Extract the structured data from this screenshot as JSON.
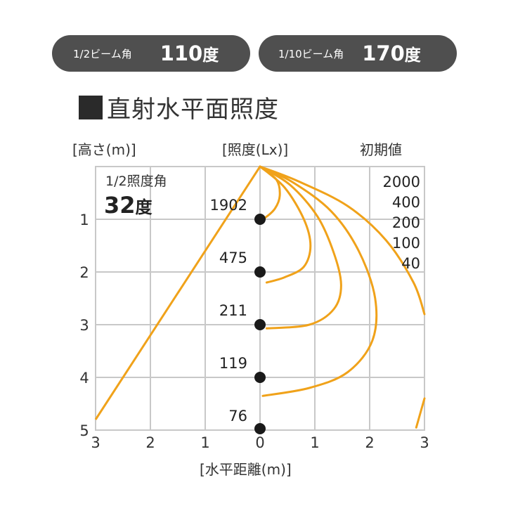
{
  "badges": [
    {
      "label": "1/2ビーム角",
      "value": "110",
      "unit": "度"
    },
    {
      "label": "1/10ビーム角",
      "value": "170",
      "unit": "度"
    }
  ],
  "title": "直射水平面照度",
  "headers": {
    "height": "[高さ(m)]",
    "illuminance": "[照度(Lx)]",
    "initial": "初期値"
  },
  "x_axis_label": "[水平距離(m)]",
  "half_angle": {
    "label": "1/2照度角",
    "value": "32",
    "unit": "度"
  },
  "colors": {
    "curve": "#f0a21a",
    "grid": "#c8c8c8",
    "dot": "#1a1a1a",
    "pill": "#4f4f4f"
  },
  "chart_data": {
    "type": "diagram",
    "x_axis": {
      "ticks": [
        "3",
        "2",
        "1",
        "0",
        "1",
        "2",
        "3"
      ],
      "range": [
        -3,
        3
      ],
      "unit": "m"
    },
    "y_axis": {
      "ticks": [
        "1",
        "2",
        "3",
        "4",
        "5"
      ],
      "range": [
        0,
        5
      ],
      "unit": "m"
    },
    "center_points": [
      {
        "height": 1,
        "illuminance": "1902"
      },
      {
        "height": 2,
        "illuminance": "475"
      },
      {
        "height": 3,
        "illuminance": "211"
      },
      {
        "height": 4,
        "illuminance": "119"
      },
      {
        "height": 5,
        "illuminance": "76"
      }
    ],
    "isolux_legend": [
      "2000",
      "400",
      "200",
      "100",
      "40"
    ],
    "isolux_curves": [
      {
        "label": "2000",
        "points": [
          [
            0,
            0
          ],
          [
            0.3,
            0.25
          ],
          [
            0.36,
            0.55
          ],
          [
            0.27,
            0.8
          ],
          [
            0.08,
            0.98
          ],
          [
            0,
            1.0
          ]
        ]
      },
      {
        "label": "400",
        "points": [
          [
            0,
            0
          ],
          [
            0.45,
            0.4
          ],
          [
            0.8,
            1.0
          ],
          [
            0.92,
            1.5
          ],
          [
            0.8,
            1.9
          ],
          [
            0.45,
            2.1
          ],
          [
            0.12,
            2.2
          ]
        ]
      },
      {
        "label": "200",
        "points": [
          [
            0,
            0
          ],
          [
            0.55,
            0.35
          ],
          [
            1.05,
            0.95
          ],
          [
            1.35,
            1.65
          ],
          [
            1.48,
            2.25
          ],
          [
            1.35,
            2.7
          ],
          [
            0.9,
            3.0
          ],
          [
            0.12,
            3.07
          ]
        ]
      },
      {
        "label": "100",
        "points": [
          [
            0,
            0
          ],
          [
            0.6,
            0.3
          ],
          [
            1.3,
            0.85
          ],
          [
            1.8,
            1.6
          ],
          [
            2.1,
            2.5
          ],
          [
            2.05,
            3.3
          ],
          [
            1.6,
            3.9
          ],
          [
            0.9,
            4.2
          ],
          [
            0.05,
            4.35
          ]
        ]
      },
      {
        "label": "40",
        "points": [
          [
            0,
            0
          ],
          [
            0.7,
            0.28
          ],
          [
            1.6,
            0.75
          ],
          [
            2.3,
            1.4
          ],
          [
            2.8,
            2.2
          ],
          [
            3.0,
            2.8
          ]
        ]
      },
      {
        "label": "40-lower",
        "points": [
          [
            3.0,
            4.4
          ],
          [
            2.85,
            4.95
          ]
        ]
      }
    ],
    "half_angle_line": {
      "points": [
        [
          0,
          0
        ],
        [
          -3,
          4.8
        ]
      ]
    }
  }
}
